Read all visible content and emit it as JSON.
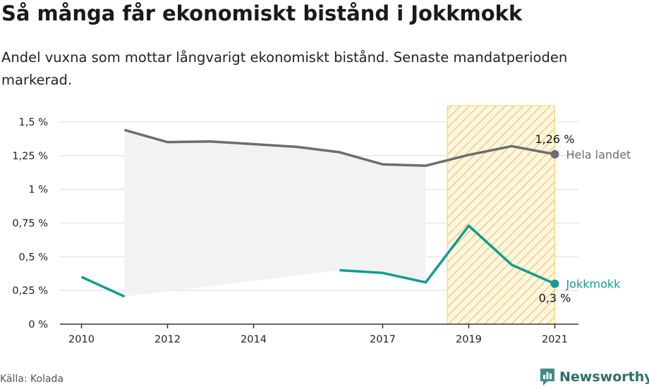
{
  "title": "Så många får ekonomiskt bistånd i Jokkmokk",
  "subtitle": "Andel vuxna som mottar långvarigt ekonomiskt bistånd. Senaste mandatperioden markerad.",
  "source": "Källa: Kolada",
  "logo_text": "Newsworthy",
  "chart_data": {
    "type": "line",
    "x_ticks": [
      2010,
      2012,
      2014,
      2017,
      2019,
      2021
    ],
    "y_ticks": [
      0,
      0.25,
      0.5,
      0.75,
      1,
      1.25,
      1.5
    ],
    "y_tick_labels": [
      "0 %",
      "0,25 %",
      "0,5 %",
      "0,75 %",
      "1 %",
      "1,25 %",
      "1,5 %"
    ],
    "xlim": [
      2009.5,
      2021.55
    ],
    "ylim": [
      0,
      1.62
    ],
    "highlight_period": [
      2018.5,
      2021
    ],
    "series": [
      {
        "name": "Hela landet",
        "color": "#6c6c72",
        "x": [
          2011,
          2012,
          2013,
          2014,
          2015,
          2016,
          2017,
          2018,
          2019,
          2020,
          2021
        ],
        "values": [
          1.44,
          1.35,
          1.355,
          1.335,
          1.315,
          1.275,
          1.185,
          1.175,
          1.255,
          1.32,
          1.26
        ],
        "end_label": "1,26 %"
      },
      {
        "name": "Jokkmokk",
        "color": "#0f9d91",
        "x": [
          2010,
          2011,
          2012,
          2013,
          2014,
          2015,
          2016,
          2017,
          2018,
          2019,
          2020,
          2021
        ],
        "values": [
          0.35,
          0.205,
          null,
          null,
          null,
          null,
          0.4,
          0.38,
          0.31,
          0.73,
          0.44,
          0.3
        ],
        "end_label": "0,3 %"
      }
    ],
    "grid": true
  }
}
